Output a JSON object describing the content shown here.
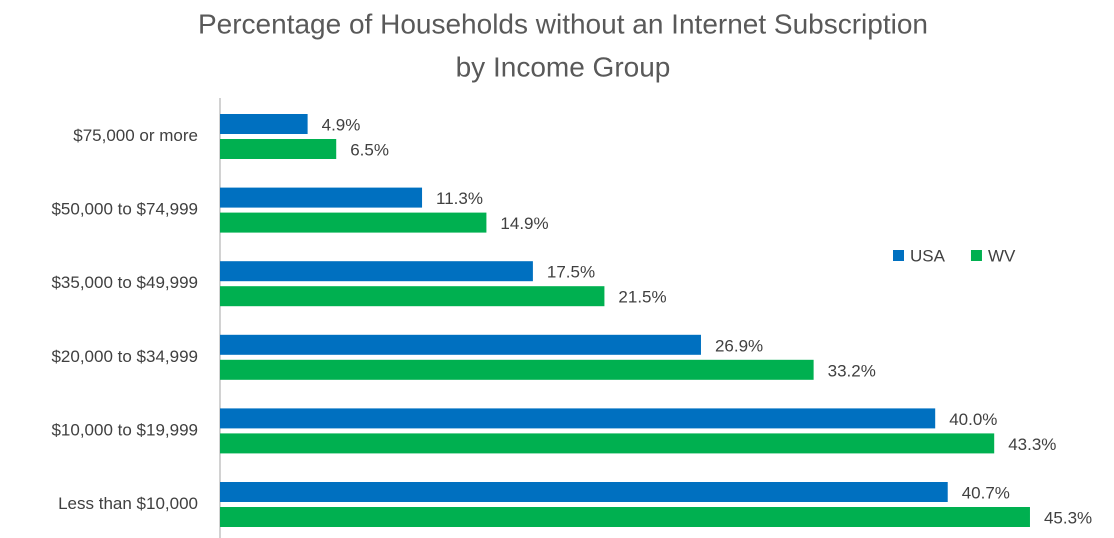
{
  "chart_data": {
    "type": "hbar",
    "title": [
      "Percentage of Households without an Internet Subscription",
      "by Income Group"
    ],
    "categories": [
      "$75,000 or more",
      "$50,000 to $74,999",
      "$35,000 to $49,999",
      "$20,000 to $34,999",
      "$10,000 to $19,999",
      "Less than $10,000"
    ],
    "series": [
      {
        "name": "USA",
        "color": "#0070c0",
        "values": [
          4.9,
          11.3,
          17.5,
          26.9,
          40.0,
          40.7
        ],
        "value_labels": [
          "4.9%",
          "11.3%",
          "17.5%",
          "26.9%",
          "40.0%",
          "40.7%"
        ]
      },
      {
        "name": "WV",
        "color": "#00b050",
        "values": [
          6.5,
          14.9,
          21.5,
          33.2,
          43.3,
          45.3
        ],
        "value_labels": [
          "6.5%",
          "14.9%",
          "21.5%",
          "33.2%",
          "43.3%",
          "45.3%"
        ]
      }
    ],
    "xlim": [
      0,
      50
    ],
    "legend": "right",
    "grid": false
  }
}
